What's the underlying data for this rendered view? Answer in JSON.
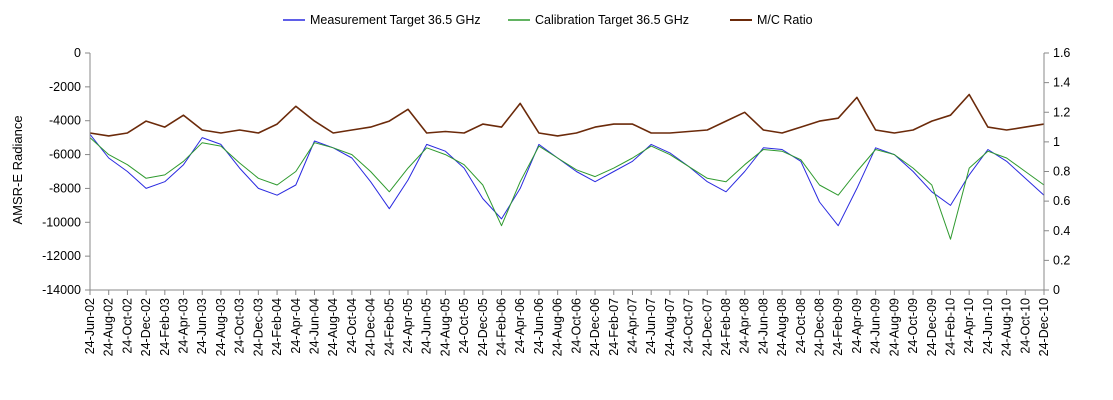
{
  "chart_data": {
    "type": "line",
    "ylabel": "AMSR-E Radiance",
    "y_left": {
      "min": -14000,
      "max": 0,
      "ticks": [
        "0",
        "-2000",
        "-4000",
        "-6000",
        "-8000",
        "-10000",
        "-12000",
        "-14000"
      ]
    },
    "y_right": {
      "min": 0,
      "max": 1.6,
      "ticks": [
        "1.6",
        "1.4",
        "1.2",
        "1",
        "0.8",
        "0.6",
        "0.4",
        "0.2",
        "0"
      ]
    },
    "grid": false,
    "legend_position": "top",
    "x_range": [
      "24-Jun-02",
      "24-Dec-10"
    ],
    "x_tick_labels": [
      "24-Jun-02",
      "24-Aug-02",
      "24-Oct-02",
      "24-Dec-02",
      "24-Feb-03",
      "24-Apr-03",
      "24-Jun-03",
      "24-Aug-03",
      "24-Oct-03",
      "24-Dec-03",
      "24-Feb-04",
      "24-Apr-04",
      "24-Jun-04",
      "24-Aug-04",
      "24-Oct-04",
      "24-Dec-04",
      "24-Feb-05",
      "24-Apr-05",
      "24-Jun-05",
      "24-Aug-05",
      "24-Oct-05",
      "24-Dec-05",
      "24-Feb-06",
      "24-Apr-06",
      "24-Jun-06",
      "24-Aug-06",
      "24-Oct-06",
      "24-Dec-06",
      "24-Feb-07",
      "24-Apr-07",
      "24-Jun-07",
      "24-Aug-07",
      "24-Oct-07",
      "24-Dec-07",
      "24-Feb-08",
      "24-Apr-08",
      "24-Jun-08",
      "24-Aug-08",
      "24-Oct-08",
      "24-Dec-08",
      "24-Feb-09",
      "24-Apr-09",
      "24-Jun-09",
      "24-Aug-09",
      "24-Oct-09",
      "24-Dec-09",
      "24-Feb-10",
      "24-Apr-10",
      "24-Jun-10",
      "24-Aug-10",
      "24-Oct-10",
      "24-Dec-10"
    ],
    "series": [
      {
        "name": "Measurement Target 36.5 GHz",
        "axis": "left",
        "color": "#2a2ae0",
        "points": [
          [
            "24-Jun-02",
            -4800
          ],
          [
            "24-Aug-02",
            -6200
          ],
          [
            "24-Oct-02",
            -7000
          ],
          [
            "24-Dec-02",
            -8000
          ],
          [
            "24-Feb-03",
            -7600
          ],
          [
            "24-Apr-03",
            -6600
          ],
          [
            "24-Jun-03",
            -5000
          ],
          [
            "24-Aug-03",
            -5400
          ],
          [
            "24-Oct-03",
            -6800
          ],
          [
            "24-Dec-03",
            -8000
          ],
          [
            "24-Feb-04",
            -8400
          ],
          [
            "24-Apr-04",
            -7800
          ],
          [
            "24-Jun-04",
            -5200
          ],
          [
            "24-Aug-04",
            -5600
          ],
          [
            "24-Oct-04",
            -6200
          ],
          [
            "24-Dec-04",
            -7600
          ],
          [
            "24-Feb-05",
            -9200
          ],
          [
            "24-Apr-05",
            -7500
          ],
          [
            "24-Jun-05",
            -5400
          ],
          [
            "24-Aug-05",
            -5800
          ],
          [
            "24-Oct-05",
            -6800
          ],
          [
            "24-Dec-05",
            -8600
          ],
          [
            "24-Feb-06",
            -9800
          ],
          [
            "24-Apr-06",
            -8000
          ],
          [
            "24-Jun-06",
            -5400
          ],
          [
            "24-Aug-06",
            -6200
          ],
          [
            "24-Oct-06",
            -7000
          ],
          [
            "24-Dec-06",
            -7600
          ],
          [
            "24-Feb-07",
            -7000
          ],
          [
            "24-Apr-07",
            -6400
          ],
          [
            "24-Jun-07",
            -5400
          ],
          [
            "24-Aug-07",
            -5900
          ],
          [
            "24-Oct-07",
            -6700
          ],
          [
            "24-Dec-07",
            -7600
          ],
          [
            "24-Feb-08",
            -8200
          ],
          [
            "24-Apr-08",
            -7000
          ],
          [
            "24-Jun-08",
            -5600
          ],
          [
            "24-Aug-08",
            -5700
          ],
          [
            "24-Oct-08",
            -6400
          ],
          [
            "24-Dec-08",
            -8800
          ],
          [
            "24-Feb-09",
            -10200
          ],
          [
            "24-Apr-09",
            -8000
          ],
          [
            "24-Jun-09",
            -5600
          ],
          [
            "24-Aug-09",
            -6000
          ],
          [
            "24-Oct-09",
            -7000
          ],
          [
            "24-Dec-09",
            -8200
          ],
          [
            "24-Feb-10",
            -9000
          ],
          [
            "24-Apr-10",
            -7200
          ],
          [
            "24-Jun-10",
            -5700
          ],
          [
            "24-Aug-10",
            -6400
          ],
          [
            "24-Oct-10",
            -7400
          ],
          [
            "24-Dec-10",
            -8400
          ]
        ]
      },
      {
        "name": "Calibration Target 36.5 GHz",
        "axis": "left",
        "color": "#2f9a2f",
        "points": [
          [
            "24-Jun-02",
            -5000
          ],
          [
            "24-Aug-02",
            -6000
          ],
          [
            "24-Oct-02",
            -6600
          ],
          [
            "24-Dec-02",
            -7400
          ],
          [
            "24-Feb-03",
            -7200
          ],
          [
            "24-Apr-03",
            -6400
          ],
          [
            "24-Jun-03",
            -5300
          ],
          [
            "24-Aug-03",
            -5500
          ],
          [
            "24-Oct-03",
            -6500
          ],
          [
            "24-Dec-03",
            -7400
          ],
          [
            "24-Feb-04",
            -7800
          ],
          [
            "24-Apr-04",
            -7000
          ],
          [
            "24-Jun-04",
            -5300
          ],
          [
            "24-Aug-04",
            -5600
          ],
          [
            "24-Oct-04",
            -6000
          ],
          [
            "24-Dec-04",
            -7000
          ],
          [
            "24-Feb-05",
            -8200
          ],
          [
            "24-Apr-05",
            -6800
          ],
          [
            "24-Jun-05",
            -5600
          ],
          [
            "24-Aug-05",
            -6000
          ],
          [
            "24-Oct-05",
            -6600
          ],
          [
            "24-Dec-05",
            -7800
          ],
          [
            "24-Feb-06",
            -10200
          ],
          [
            "24-Apr-06",
            -7600
          ],
          [
            "24-Jun-06",
            -5500
          ],
          [
            "24-Aug-06",
            -6200
          ],
          [
            "24-Oct-06",
            -6900
          ],
          [
            "24-Dec-06",
            -7300
          ],
          [
            "24-Feb-07",
            -6800
          ],
          [
            "24-Apr-07",
            -6200
          ],
          [
            "24-Jun-07",
            -5500
          ],
          [
            "24-Aug-07",
            -6000
          ],
          [
            "24-Oct-07",
            -6700
          ],
          [
            "24-Dec-07",
            -7400
          ],
          [
            "24-Feb-08",
            -7600
          ],
          [
            "24-Apr-08",
            -6600
          ],
          [
            "24-Jun-08",
            -5700
          ],
          [
            "24-Aug-08",
            -5800
          ],
          [
            "24-Oct-08",
            -6300
          ],
          [
            "24-Dec-08",
            -7800
          ],
          [
            "24-Feb-09",
            -8400
          ],
          [
            "24-Apr-09",
            -7000
          ],
          [
            "24-Jun-09",
            -5700
          ],
          [
            "24-Aug-09",
            -6000
          ],
          [
            "24-Oct-09",
            -6800
          ],
          [
            "24-Dec-09",
            -7800
          ],
          [
            "24-Feb-10",
            -11000
          ],
          [
            "24-Apr-10",
            -6800
          ],
          [
            "24-Jun-10",
            -5800
          ],
          [
            "24-Aug-10",
            -6200
          ],
          [
            "24-Oct-10",
            -7000
          ],
          [
            "24-Dec-10",
            -7800
          ]
        ]
      },
      {
        "name": "M/C Ratio",
        "axis": "right",
        "color": "#6b2a0a",
        "points": [
          [
            "24-Jun-02",
            1.06
          ],
          [
            "24-Aug-02",
            1.04
          ],
          [
            "24-Oct-02",
            1.06
          ],
          [
            "24-Dec-02",
            1.14
          ],
          [
            "24-Feb-03",
            1.1
          ],
          [
            "24-Apr-03",
            1.18
          ],
          [
            "24-Jun-03",
            1.08
          ],
          [
            "24-Aug-03",
            1.06
          ],
          [
            "24-Oct-03",
            1.08
          ],
          [
            "24-Dec-03",
            1.06
          ],
          [
            "24-Feb-04",
            1.12
          ],
          [
            "24-Apr-04",
            1.24
          ],
          [
            "24-Jun-04",
            1.14
          ],
          [
            "24-Aug-04",
            1.06
          ],
          [
            "24-Oct-04",
            1.08
          ],
          [
            "24-Dec-04",
            1.1
          ],
          [
            "24-Feb-05",
            1.14
          ],
          [
            "24-Apr-05",
            1.22
          ],
          [
            "24-Jun-05",
            1.06
          ],
          [
            "24-Aug-05",
            1.07
          ],
          [
            "24-Oct-05",
            1.06
          ],
          [
            "24-Dec-05",
            1.12
          ],
          [
            "24-Feb-06",
            1.1
          ],
          [
            "24-Apr-06",
            1.26
          ],
          [
            "24-Jun-06",
            1.06
          ],
          [
            "24-Aug-06",
            1.04
          ],
          [
            "24-Oct-06",
            1.06
          ],
          [
            "24-Dec-06",
            1.1
          ],
          [
            "24-Feb-07",
            1.12
          ],
          [
            "24-Apr-07",
            1.12
          ],
          [
            "24-Jun-07",
            1.06
          ],
          [
            "24-Aug-07",
            1.06
          ],
          [
            "24-Oct-07",
            1.07
          ],
          [
            "24-Dec-07",
            1.08
          ],
          [
            "24-Feb-08",
            1.14
          ],
          [
            "24-Apr-08",
            1.2
          ],
          [
            "24-Jun-08",
            1.08
          ],
          [
            "24-Aug-08",
            1.06
          ],
          [
            "24-Oct-08",
            1.1
          ],
          [
            "24-Dec-08",
            1.14
          ],
          [
            "24-Feb-09",
            1.16
          ],
          [
            "24-Apr-09",
            1.3
          ],
          [
            "24-Jun-09",
            1.08
          ],
          [
            "24-Aug-09",
            1.06
          ],
          [
            "24-Oct-09",
            1.08
          ],
          [
            "24-Dec-09",
            1.14
          ],
          [
            "24-Feb-10",
            1.18
          ],
          [
            "24-Apr-10",
            1.32
          ],
          [
            "24-Jun-10",
            1.1
          ],
          [
            "24-Aug-10",
            1.08
          ],
          [
            "24-Oct-10",
            1.1
          ],
          [
            "24-Dec-10",
            1.12
          ]
        ]
      }
    ]
  }
}
